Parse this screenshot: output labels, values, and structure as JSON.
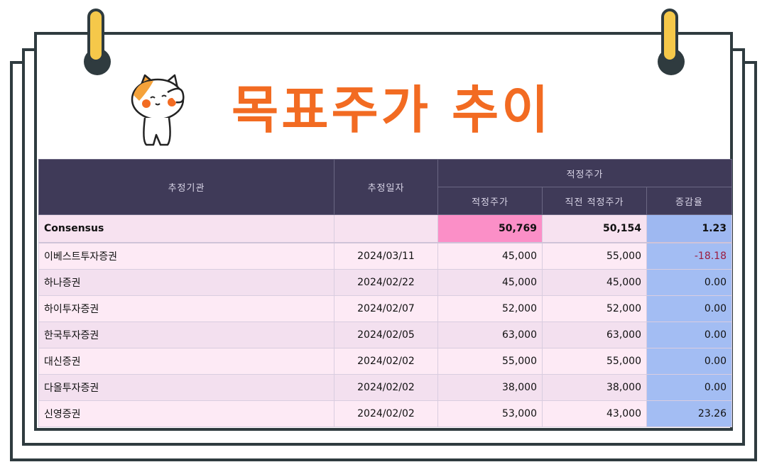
{
  "title": "목표주가 추이",
  "colors": {
    "accent": "#f26b22",
    "header_bg": "#3f3a58",
    "highlight": "#fb8fc7",
    "change_col": "#a3bdf3",
    "frame": "#2f3b3f",
    "clip": "#f5c84a"
  },
  "table": {
    "headers": {
      "institution": "추정기관",
      "date": "추정일자",
      "group": "적정주가",
      "price": "적정주가",
      "prev_price": "직전 적정주가",
      "change": "증감율"
    },
    "consensus": {
      "name": "Consensus",
      "date": "",
      "price": "50,769",
      "prev_price": "50,154",
      "change": "1.23"
    },
    "rows": [
      {
        "name": "이베스트투자증권",
        "date": "2024/03/11",
        "price": "45,000",
        "prev_price": "55,000",
        "change": "-18.18"
      },
      {
        "name": "하나증권",
        "date": "2024/02/22",
        "price": "45,000",
        "prev_price": "45,000",
        "change": "0.00"
      },
      {
        "name": "하이투자증권",
        "date": "2024/02/07",
        "price": "52,000",
        "prev_price": "52,000",
        "change": "0.00"
      },
      {
        "name": "한국투자증권",
        "date": "2024/02/05",
        "price": "63,000",
        "prev_price": "63,000",
        "change": "0.00"
      },
      {
        "name": "대신증권",
        "date": "2024/02/02",
        "price": "55,000",
        "prev_price": "55,000",
        "change": "0.00"
      },
      {
        "name": "다올투자증권",
        "date": "2024/02/02",
        "price": "38,000",
        "prev_price": "38,000",
        "change": "0.00"
      },
      {
        "name": "신영증권",
        "date": "2024/02/02",
        "price": "53,000",
        "prev_price": "43,000",
        "change": "23.26"
      }
    ]
  }
}
